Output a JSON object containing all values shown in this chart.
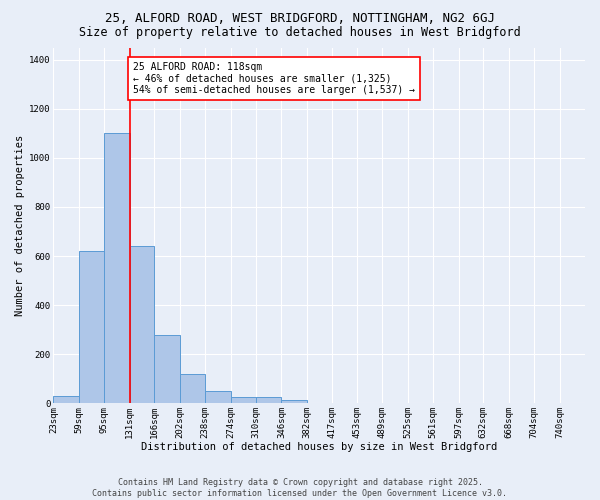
{
  "title_line1": "25, ALFORD ROAD, WEST BRIDGFORD, NOTTINGHAM, NG2 6GJ",
  "title_line2": "Size of property relative to detached houses in West Bridgford",
  "xlabel": "Distribution of detached houses by size in West Bridgford",
  "ylabel": "Number of detached properties",
  "bin_labels": [
    "23sqm",
    "59sqm",
    "95sqm",
    "131sqm",
    "166sqm",
    "202sqm",
    "238sqm",
    "274sqm",
    "310sqm",
    "346sqm",
    "382sqm",
    "417sqm",
    "453sqm",
    "489sqm",
    "525sqm",
    "561sqm",
    "597sqm",
    "632sqm",
    "668sqm",
    "704sqm",
    "740sqm"
  ],
  "bar_values": [
    30,
    620,
    1100,
    640,
    280,
    120,
    50,
    25,
    25,
    15,
    0,
    0,
    0,
    0,
    0,
    0,
    0,
    0,
    0,
    0,
    0
  ],
  "bar_color": "#aec6e8",
  "bar_edge_color": "#5b9bd5",
  "background_color": "#e8eef8",
  "grid_color": "#ffffff",
  "vline_color": "red",
  "annotation_text": "25 ALFORD ROAD: 118sqm\n← 46% of detached houses are smaller (1,325)\n54% of semi-detached houses are larger (1,537) →",
  "annotation_box_color": "white",
  "annotation_box_edge": "red",
  "ylim": [
    0,
    1450
  ],
  "yticks": [
    0,
    200,
    400,
    600,
    800,
    1000,
    1200,
    1400
  ],
  "bin_edges": [
    23,
    59,
    95,
    131,
    166,
    202,
    238,
    274,
    310,
    346,
    382,
    417,
    453,
    489,
    525,
    561,
    597,
    632,
    668,
    704,
    740
  ],
  "bin_width": 36,
  "footer_line1": "Contains HM Land Registry data © Crown copyright and database right 2025.",
  "footer_line2": "Contains public sector information licensed under the Open Government Licence v3.0.",
  "title_fontsize": 9,
  "subtitle_fontsize": 8.5,
  "axis_label_fontsize": 7.5,
  "tick_fontsize": 6.5,
  "annotation_fontsize": 7,
  "footer_fontsize": 6
}
